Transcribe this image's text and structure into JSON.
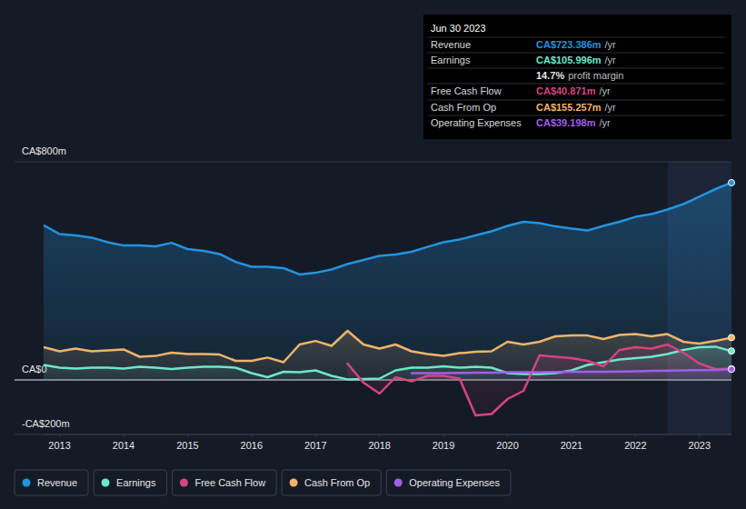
{
  "chart_data": {
    "type": "line",
    "x": [
      2012.75,
      2013,
      2013.25,
      2013.5,
      2013.75,
      2014,
      2014.25,
      2014.5,
      2014.75,
      2015,
      2015.25,
      2015.5,
      2015.75,
      2016,
      2016.25,
      2016.5,
      2016.75,
      2017,
      2017.25,
      2017.5,
      2017.75,
      2018,
      2018.25,
      2018.5,
      2018.75,
      2019,
      2019.25,
      2019.5,
      2019.75,
      2020,
      2020.25,
      2020.5,
      2020.75,
      2021,
      2021.25,
      2021.5,
      2021.75,
      2022,
      2022.25,
      2022.5,
      2022.75,
      2023,
      2023.25,
      2023.5
    ],
    "xlim": [
      2012.75,
      2023.5
    ],
    "xticks": [
      2013,
      2014,
      2015,
      2016,
      2017,
      2018,
      2019,
      2020,
      2021,
      2022,
      2023
    ],
    "ylim": [
      -200,
      800
    ],
    "yticks": [
      {
        "value": 800,
        "label": "CA$800m"
      },
      {
        "value": 0,
        "label": "CA$0"
      },
      {
        "value": -200,
        "label": "-CA$200m"
      }
    ],
    "grid": true,
    "legend": "bottom",
    "series": [
      {
        "name": "Revenue",
        "color": "#2394df",
        "values": [
          567,
          535,
          530,
          522,
          505,
          493,
          493,
          490,
          503,
          480,
          473,
          462,
          433,
          415,
          415,
          410,
          387,
          393,
          405,
          425,
          440,
          455,
          460,
          470,
          488,
          505,
          515,
          530,
          545,
          565,
          580,
          575,
          563,
          555,
          548,
          565,
          580,
          598,
          608,
          625,
          645,
          672,
          700,
          723.386
        ]
      },
      {
        "name": "Earnings",
        "color": "#6ee7c8",
        "values": [
          55,
          45,
          42,
          45,
          45,
          42,
          48,
          45,
          40,
          45,
          48,
          48,
          45,
          25,
          10,
          30,
          28,
          35,
          15,
          2,
          3,
          5,
          35,
          45,
          45,
          50,
          45,
          48,
          45,
          25,
          22,
          22,
          25,
          35,
          55,
          65,
          75,
          80,
          85,
          95,
          110,
          120,
          122,
          105.996
        ]
      },
      {
        "name": "Free Cash Flow",
        "color": "#d6447f",
        "values": [
          null,
          null,
          null,
          null,
          null,
          null,
          null,
          null,
          null,
          null,
          null,
          null,
          null,
          null,
          null,
          null,
          null,
          null,
          null,
          60,
          -10,
          -50,
          10,
          -5,
          15,
          15,
          5,
          -130,
          -125,
          -70,
          -40,
          90,
          85,
          80,
          70,
          50,
          110,
          120,
          115,
          130,
          100,
          60,
          40,
          40.871
        ]
      },
      {
        "name": "Cash From Op",
        "color": "#f0b56a",
        "values": [
          120,
          105,
          115,
          105,
          108,
          112,
          85,
          88,
          100,
          95,
          95,
          93,
          70,
          70,
          82,
          65,
          130,
          143,
          125,
          180,
          130,
          115,
          130,
          105,
          95,
          88,
          98,
          103,
          105,
          140,
          130,
          140,
          160,
          163,
          163,
          150,
          165,
          168,
          160,
          168,
          140,
          133,
          143,
          155.257
        ]
      },
      {
        "name": "Operating Expenses",
        "color": "#a15ee8",
        "values": [
          null,
          null,
          null,
          null,
          null,
          null,
          null,
          null,
          null,
          null,
          null,
          null,
          null,
          null,
          null,
          null,
          null,
          null,
          null,
          null,
          null,
          null,
          null,
          25,
          25,
          25,
          26,
          27,
          27,
          28,
          28,
          28,
          29,
          30,
          30,
          30,
          31,
          32,
          33,
          34,
          35,
          36,
          37,
          39.198
        ]
      }
    ],
    "annotations": [
      {
        "title": "Jun 30 2023",
        "rows": [
          {
            "label": "Revenue",
            "text": "CA$723.386m",
            "suffix": "/yr",
            "color": "#2394df"
          },
          {
            "label": "Earnings",
            "text": "CA$105.996m",
            "suffix": "/yr",
            "color": "#6ee7c8"
          },
          {
            "text": "14.7%",
            "suffix": "profit margin",
            "color": "#e6e6e6"
          },
          {
            "label": "Free Cash Flow",
            "text": "CA$40.871m",
            "suffix": "/yr",
            "color": "#d6447f"
          },
          {
            "label": "Cash From Op",
            "text": "CA$155.257m",
            "suffix": "/yr",
            "color": "#f0b56a"
          },
          {
            "label": "Operating Expenses",
            "text": "CA$39.198m",
            "suffix": "/yr",
            "color": "#a15ee8"
          }
        ]
      }
    ]
  }
}
